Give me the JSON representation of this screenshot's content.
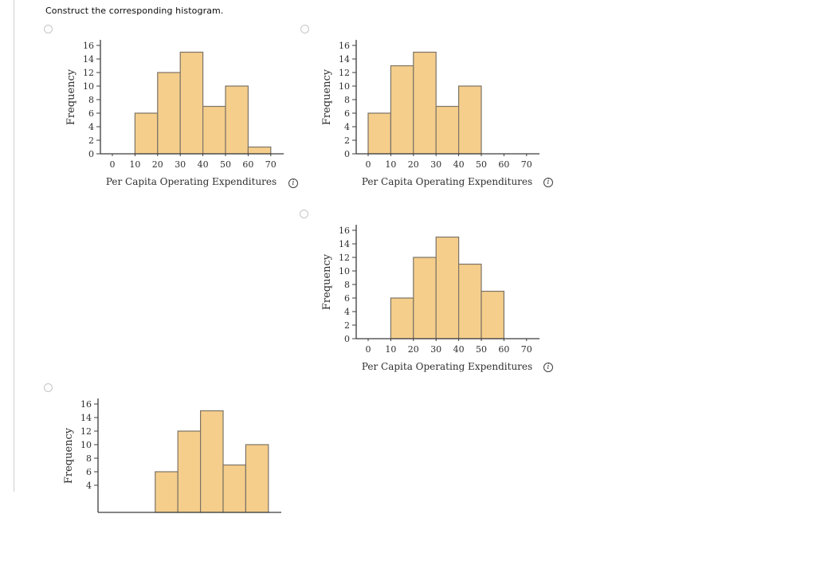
{
  "page": {
    "title": "Construct the corresponding histogram.",
    "info_icon": "i"
  },
  "colors": {
    "bar_fill": "#F5CE8C",
    "bar_stroke": "#7C7365",
    "axis": "#3C3C3C",
    "text": "#2F2F2F"
  },
  "chart_data": [
    {
      "id": "a",
      "type": "bar",
      "subtype": "histogram",
      "xlabel": "Per Capita Operating Expenditures",
      "ylabel": "Frequency",
      "bins": [
        {
          "x0": 10,
          "x1": 20,
          "freq": 6
        },
        {
          "x0": 20,
          "x1": 30,
          "freq": 12
        },
        {
          "x0": 30,
          "x1": 40,
          "freq": 15
        },
        {
          "x0": 40,
          "x1": 50,
          "freq": 7
        },
        {
          "x0": 50,
          "x1": 60,
          "freq": 10
        },
        {
          "x0": 60,
          "x1": 70,
          "freq": 1
        }
      ],
      "x_ticks": [
        0,
        10,
        20,
        30,
        40,
        50,
        60,
        70
      ],
      "y_ticks": [
        0,
        2,
        4,
        6,
        8,
        10,
        12,
        14,
        16
      ],
      "xlim": [
        -5,
        76
      ],
      "ylim": [
        0,
        16
      ],
      "grid": false
    },
    {
      "id": "b",
      "type": "bar",
      "subtype": "histogram",
      "xlabel": "Per Capita Operating Expenditures",
      "ylabel": "Frequency",
      "bins": [
        {
          "x0": 0,
          "x1": 10,
          "freq": 6
        },
        {
          "x0": 10,
          "x1": 20,
          "freq": 13
        },
        {
          "x0": 20,
          "x1": 30,
          "freq": 15
        },
        {
          "x0": 30,
          "x1": 40,
          "freq": 7
        },
        {
          "x0": 40,
          "x1": 50,
          "freq": 10
        }
      ],
      "x_ticks": [
        0,
        10,
        20,
        30,
        40,
        50,
        60,
        70
      ],
      "y_ticks": [
        0,
        2,
        4,
        6,
        8,
        10,
        12,
        14,
        16
      ],
      "xlim": [
        -5,
        76
      ],
      "ylim": [
        0,
        16
      ],
      "grid": false
    },
    {
      "id": "c",
      "type": "bar",
      "subtype": "histogram",
      "xlabel": "Per Capita Operating Expenditures",
      "ylabel": "Frequency",
      "bins": [
        {
          "x0": 10,
          "x1": 20,
          "freq": 6
        },
        {
          "x0": 20,
          "x1": 30,
          "freq": 12
        },
        {
          "x0": 30,
          "x1": 40,
          "freq": 15
        },
        {
          "x0": 40,
          "x1": 50,
          "freq": 11
        },
        {
          "x0": 50,
          "x1": 60,
          "freq": 7
        }
      ],
      "x_ticks": [
        0,
        10,
        20,
        30,
        40,
        50,
        60,
        70
      ],
      "y_ticks": [
        0,
        2,
        4,
        6,
        8,
        10,
        12,
        14,
        16
      ],
      "xlim": [
        -5,
        76
      ],
      "ylim": [
        0,
        16
      ],
      "grid": false
    },
    {
      "id": "d",
      "type": "bar",
      "subtype": "histogram",
      "xlabel": "",
      "ylabel": "Frequency",
      "bins": [
        {
          "x0": 20,
          "x1": 30,
          "freq": 6
        },
        {
          "x0": 30,
          "x1": 40,
          "freq": 12
        },
        {
          "x0": 40,
          "x1": 50,
          "freq": 15
        },
        {
          "x0": 50,
          "x1": 60,
          "freq": 7
        },
        {
          "x0": 60,
          "x1": 70,
          "freq": 10
        }
      ],
      "x_ticks": [],
      "y_ticks": [
        4,
        6,
        8,
        10,
        12,
        14,
        16
      ],
      "xlim": [
        -5,
        76
      ],
      "ylim": [
        0,
        16
      ],
      "grid": false,
      "clipped_at_bottom": true
    }
  ]
}
